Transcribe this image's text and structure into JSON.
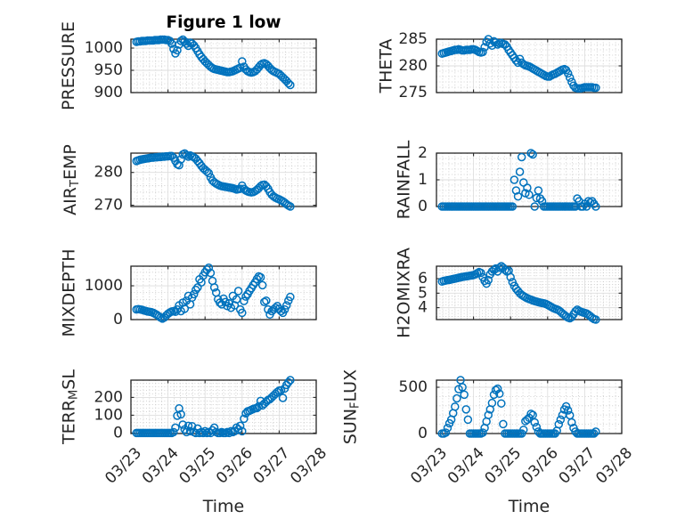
{
  "figure": {
    "title": "Figure 1 low",
    "marker": "circle",
    "marker_color": "#0072BD",
    "axes_color": "#262626"
  },
  "chart_data": [
    {
      "type": "scatter",
      "title": "Figure 1 low",
      "ylabel": {
        "text": "PRESSURE",
        "sub": "",
        "text2": ""
      },
      "xlabel": "",
      "x_unit": "days since 03/23",
      "x_start_days": 0.15,
      "x_step_days": 0.05,
      "xlim_days": [
        0,
        5
      ],
      "xticks_days": [
        0,
        1,
        2,
        3,
        4,
        5
      ],
      "xtick_labels": [],
      "x_minor_step_days": 0.16667,
      "ylim": [
        900,
        1020
      ],
      "yticks": [
        900,
        950,
        1000
      ],
      "ytick_labels": [
        "900",
        "950",
        "1000"
      ],
      "y_minor_step": 10,
      "grid": true,
      "minor_grid": true,
      "y": [
        1014,
        1015,
        1015,
        1016,
        1016,
        1016,
        1017,
        1017,
        1017,
        1017,
        1018,
        1018,
        1018,
        1019,
        1019,
        1019,
        1018,
        1018,
        1016,
        1010,
        998,
        988,
        995,
        1008,
        1016,
        1019,
        1015,
        1010,
        1005,
        1012,
        1010,
        1006,
        1000,
        993,
        986,
        980,
        975,
        970,
        966,
        962,
        958,
        955,
        953,
        952,
        951,
        950,
        949,
        948,
        947,
        946,
        946,
        947,
        948,
        950,
        952,
        954,
        956,
        970,
        958,
        952,
        948,
        946,
        945,
        946,
        948,
        952,
        957,
        962,
        965,
        966,
        964,
        960,
        955,
        951,
        948,
        946,
        944,
        942,
        938,
        934,
        930,
        926,
        921,
        917
      ]
    },
    {
      "type": "scatter",
      "title": "",
      "ylabel": {
        "text": "THETA",
        "sub": "",
        "text2": ""
      },
      "xlabel": "",
      "x_unit": "days since 03/23",
      "x_start_days": 0.15,
      "x_step_days": 0.05,
      "xlim_days": [
        0,
        5
      ],
      "xticks_days": [
        0,
        1,
        2,
        3,
        4,
        5
      ],
      "xtick_labels": [],
      "x_minor_step_days": 0.16667,
      "ylim": [
        275,
        285
      ],
      "yticks": [
        275,
        280,
        285
      ],
      "ytick_labels": [
        "275",
        "280",
        "285"
      ],
      "y_minor_step": 1,
      "grid": true,
      "minor_grid": true,
      "y": [
        282.3,
        282.4,
        282.5,
        282.6,
        282.7,
        282.8,
        282.9,
        283.0,
        283.0,
        283.1,
        283.0,
        282.9,
        282.9,
        283.0,
        283.0,
        283.0,
        283.1,
        283.1,
        283.0,
        282.8,
        282.6,
        282.5,
        282.6,
        283.5,
        284.5,
        285.0,
        284.2,
        283.8,
        284.6,
        284.4,
        284.0,
        284.2,
        284.3,
        284.1,
        284.0,
        283.6,
        283.0,
        282.5,
        282.0,
        281.5,
        281.0,
        280.6,
        281.3,
        280.6,
        280.3,
        280.1,
        280.0,
        279.9,
        279.7,
        279.5,
        279.3,
        279.1,
        278.9,
        278.7,
        278.5,
        278.3,
        278.1,
        278.0,
        278.0,
        278.2,
        278.4,
        278.5,
        278.7,
        278.9,
        279.1,
        279.3,
        279.4,
        279.2,
        278.6,
        277.8,
        277.0,
        276.3,
        275.9,
        275.8,
        275.8,
        275.8,
        275.9,
        276.0,
        276.0,
        276.0,
        276.0,
        276.0,
        275.9,
        275.9
      ]
    },
    {
      "type": "scatter",
      "title": "",
      "ylabel": {
        "text": "AIR",
        "sub": "T",
        "text2": "EMP"
      },
      "xlabel": "",
      "x_unit": "days since 03/23",
      "x_start_days": 0.15,
      "x_step_days": 0.05,
      "xlim_days": [
        0,
        5
      ],
      "xticks_days": [
        0,
        1,
        2,
        3,
        4,
        5
      ],
      "xtick_labels": [],
      "x_minor_step_days": 0.16667,
      "ylim": [
        269.6,
        285.9
      ],
      "yticks": [
        270,
        280
      ],
      "ytick_labels": [
        "270",
        "280"
      ],
      "y_minor_step": 2,
      "grid": true,
      "minor_grid": true,
      "y": [
        283.5,
        283.7,
        283.9,
        284.0,
        284.1,
        284.2,
        284.3,
        284.4,
        284.5,
        284.5,
        284.6,
        284.6,
        284.7,
        284.7,
        284.8,
        284.8,
        284.9,
        284.9,
        285.0,
        285.0,
        284.5,
        283.5,
        282.5,
        282.2,
        284.0,
        285.5,
        285.8,
        285.3,
        284.8,
        285.2,
        284.9,
        284.6,
        284.2,
        283.5,
        282.8,
        282.0,
        281.3,
        280.8,
        280.3,
        279.8,
        278.5,
        277.5,
        277.0,
        276.6,
        276.3,
        276.0,
        275.8,
        275.7,
        275.6,
        275.5,
        275.4,
        275.3,
        275.2,
        275.0,
        274.8,
        274.9,
        275.0,
        276.0,
        275.0,
        274.5,
        274.2,
        274.0,
        273.9,
        274.0,
        274.3,
        274.7,
        275.2,
        275.8,
        276.2,
        276.3,
        275.8,
        275.0,
        274.0,
        273.2,
        272.7,
        272.3,
        272.0,
        271.8,
        271.5,
        271.2,
        270.8,
        270.3,
        269.9,
        269.6
      ]
    },
    {
      "type": "scatter",
      "title": "",
      "ylabel": {
        "text": "RAINFALL",
        "sub": "",
        "text2": ""
      },
      "xlabel": "",
      "x_unit": "days since 03/23",
      "x_start_days": 0.15,
      "x_step_days": 0.05,
      "xlim_days": [
        0,
        5
      ],
      "xticks_days": [
        0,
        1,
        2,
        3,
        4,
        5
      ],
      "xtick_labels": [],
      "x_minor_step_days": 0.16667,
      "ylim": [
        0,
        2
      ],
      "yticks": [
        0,
        1,
        2
      ],
      "ytick_labels": [
        "0",
        "1",
        "2"
      ],
      "y_minor_step": 0.2,
      "grid": true,
      "minor_grid": true,
      "y": [
        0,
        0,
        0,
        0,
        0,
        0,
        0,
        0,
        0,
        0,
        0,
        0,
        0,
        0,
        0,
        0,
        0,
        0,
        0,
        0,
        0,
        0,
        0,
        0,
        0,
        0,
        0,
        0,
        0,
        0,
        0,
        0,
        0,
        0,
        0,
        0,
        0,
        0,
        0,
        1.0,
        0.6,
        0.38,
        1.3,
        1.85,
        0.9,
        0.5,
        0.7,
        0.44,
        2.0,
        1.95,
        0,
        0.32,
        0.6,
        0.3,
        0.2,
        0,
        0,
        0,
        0,
        0,
        0,
        0,
        0,
        0,
        0,
        0,
        0,
        0,
        0,
        0,
        0,
        0,
        0,
        0.3,
        0.2,
        0,
        0,
        0.1,
        0,
        0.2,
        0.15,
        0.2,
        0.1,
        0
      ]
    },
    {
      "type": "scatter",
      "title": "",
      "ylabel": {
        "text": "MIXDEPTH",
        "sub": "",
        "text2": ""
      },
      "xlabel": "",
      "x_unit": "days since 03/23",
      "x_start_days": 0.15,
      "x_step_days": 0.05,
      "xlim_days": [
        0,
        5
      ],
      "xticks_days": [
        0,
        1,
        2,
        3,
        4,
        5
      ],
      "xtick_labels": [],
      "x_minor_step_days": 0.16667,
      "ylim": [
        0,
        1580
      ],
      "yticks": [
        0,
        1000
      ],
      "ytick_labels": [
        "0",
        "1000"
      ],
      "y_minor_step": 200,
      "grid": true,
      "minor_grid": true,
      "y": [
        300,
        310,
        300,
        290,
        270,
        255,
        240,
        230,
        220,
        200,
        170,
        140,
        100,
        60,
        30,
        60,
        120,
        170,
        210,
        240,
        250,
        230,
        300,
        420,
        250,
        500,
        320,
        560,
        700,
        450,
        650,
        750,
        880,
        950,
        1190,
        1100,
        1300,
        1400,
        1480,
        1534,
        1380,
        1147,
        950,
        800,
        600,
        500,
        450,
        620,
        520,
        400,
        480,
        350,
        700,
        420,
        600,
        845,
        300,
        200,
        550,
        680,
        750,
        850,
        930,
        1020,
        1100,
        1200,
        1276,
        1250,
        1017,
        520,
        560,
        300,
        150,
        250,
        300,
        350,
        400,
        320,
        250,
        200,
        300,
        420,
        560,
        670
      ]
    },
    {
      "type": "scatter",
      "title": "",
      "ylabel": {
        "text": "H2OMIXRA",
        "sub": "",
        "text2": ""
      },
      "xlabel": "",
      "x_unit": "days since 03/23",
      "x_start_days": 0.15,
      "x_step_days": 0.05,
      "xlim_days": [
        0,
        5
      ],
      "xticks_days": [
        0,
        1,
        2,
        3,
        4,
        5
      ],
      "xtick_labels": [],
      "x_minor_step_days": 0.16667,
      "ylim": [
        3.18,
        6.86
      ],
      "yticks": [
        4,
        5,
        6
      ],
      "ytick_labels": [
        "4",
        "5",
        "6"
      ],
      "y_minor_step": 0.2,
      "grid": true,
      "minor_grid": true,
      "y": [
        5.8,
        5.85,
        5.87,
        5.9,
        5.92,
        5.95,
        5.98,
        6.0,
        6.03,
        6.06,
        6.09,
        6.12,
        6.14,
        6.16,
        6.18,
        6.2,
        6.22,
        6.25,
        6.3,
        6.38,
        6.45,
        6.4,
        6.1,
        5.85,
        5.66,
        5.9,
        6.3,
        6.5,
        6.6,
        6.7,
        6.5,
        6.75,
        6.86,
        6.75,
        6.6,
        6.5,
        6.55,
        6.1,
        5.76,
        5.5,
        5.3,
        5.15,
        5.0,
        4.88,
        4.8,
        4.72,
        4.65,
        4.6,
        4.55,
        4.5,
        4.45,
        4.42,
        4.38,
        4.35,
        4.32,
        4.3,
        4.26,
        4.2,
        4.12,
        4.05,
        3.98,
        3.92,
        3.88,
        3.82,
        3.72,
        3.6,
        3.5,
        3.4,
        3.32,
        3.27,
        3.35,
        3.55,
        3.75,
        3.86,
        3.78,
        3.72,
        3.68,
        3.64,
        3.6,
        3.52,
        3.42,
        3.3,
        3.22,
        3.18
      ]
    },
    {
      "type": "scatter",
      "title": "",
      "ylabel": {
        "text": "TERR",
        "sub": "M",
        "text2": "SL"
      },
      "xlabel": "Time",
      "x_unit": "days since 03/23",
      "x_start_days": 0.15,
      "x_step_days": 0.05,
      "xlim_days": [
        0,
        5
      ],
      "xticks_days": [
        0,
        1,
        2,
        3,
        4,
        5
      ],
      "xtick_labels": [
        "03/23",
        "03/24",
        "03/25",
        "03/26",
        "03/27",
        "03/28"
      ],
      "x_minor_step_days": 0.16667,
      "ylim": [
        -3,
        297
      ],
      "yticks": [
        0,
        100,
        200
      ],
      "ytick_labels": [
        "0",
        "100",
        "200"
      ],
      "y_minor_step": 20,
      "grid": true,
      "minor_grid": true,
      "y": [
        0,
        0,
        0,
        0,
        0,
        0,
        0,
        0,
        0,
        0,
        0,
        0,
        0,
        0,
        0,
        0,
        0,
        0,
        0,
        0,
        5,
        30,
        97,
        138,
        105,
        47,
        20,
        5,
        40,
        10,
        38,
        5,
        0,
        25,
        0,
        5,
        0,
        10,
        0,
        5,
        0,
        15,
        30,
        5,
        0,
        0,
        5,
        0,
        0,
        5,
        0,
        10,
        5,
        10,
        30,
        20,
        40,
        10,
        80,
        110,
        122,
        125,
        130,
        135,
        138,
        140,
        150,
        180,
        155,
        165,
        175,
        185,
        190,
        200,
        210,
        220,
        230,
        238,
        240,
        197,
        250,
        270,
        285,
        297
      ]
    },
    {
      "type": "scatter",
      "title": "",
      "ylabel": {
        "text": "SUN",
        "sub": "F",
        "text2": "LUX"
      },
      "xlabel": "Time",
      "x_unit": "days since 03/23",
      "x_start_days": 0.15,
      "x_step_days": 0.05,
      "xlim_days": [
        0,
        5
      ],
      "xticks_days": [
        0,
        1,
        2,
        3,
        4,
        5
      ],
      "xtick_labels": [
        "03/23",
        "03/24",
        "03/25",
        "03/26",
        "03/27",
        "03/28"
      ],
      "x_minor_step_days": 0.16667,
      "ylim": [
        0,
        577
      ],
      "yticks": [
        0,
        500
      ],
      "ytick_labels": [
        "0",
        "500"
      ],
      "y_minor_step": 100,
      "grid": true,
      "minor_grid": true,
      "y": [
        0,
        0,
        10,
        60,
        110,
        150,
        220,
        290,
        380,
        480,
        577,
        500,
        420,
        261,
        150,
        0,
        0,
        0,
        0,
        0,
        0,
        0,
        10,
        60,
        130,
        200,
        261,
        330,
        420,
        470,
        484,
        430,
        325,
        102,
        0,
        0,
        0,
        0,
        0,
        0,
        0,
        0,
        0,
        0,
        40,
        134,
        150,
        170,
        213,
        200,
        120,
        70,
        20,
        0,
        0,
        0,
        0,
        0,
        0,
        0,
        0,
        0,
        30,
        100,
        150,
        200,
        260,
        293,
        250,
        197,
        120,
        60,
        20,
        0,
        0,
        0,
        0,
        0,
        0,
        0,
        0,
        0,
        0,
        20
      ]
    }
  ]
}
